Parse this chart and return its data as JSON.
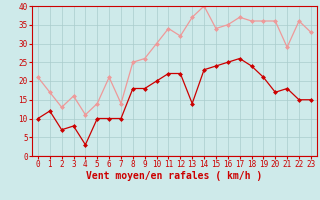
{
  "x": [
    0,
    1,
    2,
    3,
    4,
    5,
    6,
    7,
    8,
    9,
    10,
    11,
    12,
    13,
    14,
    15,
    16,
    17,
    18,
    19,
    20,
    21,
    22,
    23
  ],
  "vent_moyen": [
    10,
    12,
    7,
    8,
    3,
    10,
    10,
    10,
    18,
    18,
    20,
    22,
    22,
    14,
    23,
    24,
    25,
    26,
    24,
    21,
    17,
    18,
    15,
    15
  ],
  "rafales": [
    21,
    17,
    13,
    16,
    11,
    14,
    21,
    14,
    25,
    26,
    30,
    34,
    32,
    37,
    40,
    34,
    35,
    37,
    36,
    36,
    36,
    29,
    36,
    33
  ],
  "bg_color": "#ceeaea",
  "grid_color": "#aacccc",
  "line_color_moyen": "#cc0000",
  "line_color_rafales": "#ee9999",
  "xlabel": "Vent moyen/en rafales ( km/h )",
  "ylim": [
    0,
    40
  ],
  "xlim_min": -0.5,
  "xlim_max": 23.5,
  "yticks": [
    0,
    5,
    10,
    15,
    20,
    25,
    30,
    35,
    40
  ],
  "xticks": [
    0,
    1,
    2,
    3,
    4,
    5,
    6,
    7,
    8,
    9,
    10,
    11,
    12,
    13,
    14,
    15,
    16,
    17,
    18,
    19,
    20,
    21,
    22,
    23
  ],
  "tick_fontsize": 5.5,
  "xlabel_fontsize": 7.0,
  "marker_size": 2.5
}
